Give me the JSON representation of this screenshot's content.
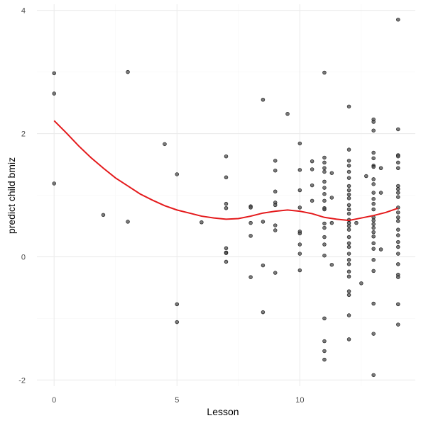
{
  "chart_data": {
    "type": "scatter",
    "title": "",
    "xlabel": "Lesson",
    "ylabel": "predict child bmiz",
    "xlim": [
      -0.7,
      14.7
    ],
    "ylim": [
      -2.1,
      4.1
    ],
    "x_ticks": [
      0,
      5,
      10
    ],
    "x_tick_labels": [
      "0",
      "5",
      "10"
    ],
    "y_ticks": [
      -2,
      0,
      2,
      4
    ],
    "y_tick_labels": [
      "-2",
      "0",
      "2",
      "4"
    ],
    "grid": true,
    "legend": "none",
    "colors": {
      "points_fill": "#4d4d4d",
      "points_stroke": "#000000",
      "smooth_line": "#e41a1c",
      "grid_major": "#ebebeb",
      "grid_minor": "#f5f5f5"
    },
    "series": [
      {
        "type": "points",
        "points": [
          [
            0,
            2.98
          ],
          [
            0,
            2.65
          ],
          [
            0,
            1.19
          ],
          [
            2,
            0.68
          ],
          [
            3,
            3.0
          ],
          [
            3,
            0.57
          ],
          [
            4.5,
            1.83
          ],
          [
            5,
            1.34
          ],
          [
            5,
            -0.77
          ],
          [
            5,
            -1.06
          ],
          [
            6,
            0.56
          ],
          [
            7,
            1.63
          ],
          [
            7,
            1.29
          ],
          [
            7,
            0.86
          ],
          [
            7,
            0.79
          ],
          [
            7,
            0.14
          ],
          [
            7,
            0.07
          ],
          [
            7,
            0.06
          ],
          [
            7,
            -0.08
          ],
          [
            8,
            0.82
          ],
          [
            8,
            0.8
          ],
          [
            8,
            0.55
          ],
          [
            8,
            0.34
          ],
          [
            8,
            -0.33
          ],
          [
            8.5,
            2.55
          ],
          [
            8.5,
            0.57
          ],
          [
            8.5,
            -0.14
          ],
          [
            8.5,
            -0.9
          ],
          [
            9,
            1.56
          ],
          [
            9,
            1.4
          ],
          [
            9,
            1.06
          ],
          [
            9,
            0.88
          ],
          [
            9,
            0.84
          ],
          [
            9,
            0.51
          ],
          [
            9,
            0.43
          ],
          [
            9,
            -0.26
          ],
          [
            9.5,
            2.32
          ],
          [
            10,
            1.84
          ],
          [
            10,
            1.41
          ],
          [
            10,
            1.08
          ],
          [
            10,
            0.8
          ],
          [
            10,
            0.41
          ],
          [
            10,
            0.38
          ],
          [
            10,
            0.2
          ],
          [
            10,
            0.05
          ],
          [
            10,
            -0.22
          ],
          [
            10.5,
            1.55
          ],
          [
            10.5,
            1.42
          ],
          [
            10.5,
            1.16
          ],
          [
            10.5,
            0.91
          ],
          [
            11,
            2.99
          ],
          [
            11,
            1.61
          ],
          [
            11,
            1.53
          ],
          [
            11,
            1.44
          ],
          [
            11,
            1.38
          ],
          [
            11,
            1.22
          ],
          [
            11,
            1.12
          ],
          [
            11,
            1.02
          ],
          [
            11,
            0.91
          ],
          [
            11,
            0.79
          ],
          [
            11,
            0.77
          ],
          [
            11,
            0.54
          ],
          [
            11,
            0.47
          ],
          [
            11,
            0.32
          ],
          [
            11,
            0.2
          ],
          [
            11,
            0.02
          ],
          [
            11,
            -1.0
          ],
          [
            11,
            -1.37
          ],
          [
            11,
            -1.53
          ],
          [
            11,
            -1.67
          ],
          [
            11.3,
            1.36
          ],
          [
            11.3,
            0.96
          ],
          [
            11.3,
            0.55
          ],
          [
            11.3,
            -0.13
          ],
          [
            12,
            2.44
          ],
          [
            12,
            1.74
          ],
          [
            12,
            1.56
          ],
          [
            12,
            1.48
          ],
          [
            12,
            1.38
          ],
          [
            12,
            1.28
          ],
          [
            12,
            1.15
          ],
          [
            12,
            1.08
          ],
          [
            12,
            1.01
          ],
          [
            12,
            0.95
          ],
          [
            12,
            0.84
          ],
          [
            12,
            0.77
          ],
          [
            12,
            0.7
          ],
          [
            12,
            0.6
          ],
          [
            12,
            0.55
          ],
          [
            12,
            0.5
          ],
          [
            12,
            0.44
          ],
          [
            12,
            0.32
          ],
          [
            12,
            0.22
          ],
          [
            12,
            0.16
          ],
          [
            12,
            0.05
          ],
          [
            12,
            -0.05
          ],
          [
            12,
            -0.12
          ],
          [
            12,
            -0.24
          ],
          [
            12,
            -0.32
          ],
          [
            12,
            -0.56
          ],
          [
            12,
            -0.62
          ],
          [
            12,
            -0.95
          ],
          [
            12,
            -1.34
          ],
          [
            12.3,
            0.55
          ],
          [
            12.5,
            -0.43
          ],
          [
            12.7,
            1.31
          ],
          [
            13,
            2.23
          ],
          [
            13,
            2.19
          ],
          [
            13,
            2.05
          ],
          [
            13,
            1.69
          ],
          [
            13,
            1.6
          ],
          [
            13,
            1.48
          ],
          [
            13,
            1.46
          ],
          [
            13,
            1.26
          ],
          [
            13,
            1.18
          ],
          [
            13,
            1.04
          ],
          [
            13,
            0.94
          ],
          [
            13,
            0.86
          ],
          [
            13,
            0.77
          ],
          [
            13,
            0.64
          ],
          [
            13,
            0.59
          ],
          [
            13,
            0.53
          ],
          [
            13,
            0.47
          ],
          [
            13,
            0.4
          ],
          [
            13,
            0.33
          ],
          [
            13,
            0.22
          ],
          [
            13,
            0.13
          ],
          [
            13,
            -0.05
          ],
          [
            13,
            -0.23
          ],
          [
            13,
            -0.76
          ],
          [
            13,
            -1.25
          ],
          [
            13,
            -1.92
          ],
          [
            13.3,
            1.44
          ],
          [
            13.3,
            1.04
          ],
          [
            13.3,
            0.12
          ],
          [
            14,
            3.85
          ],
          [
            14,
            2.07
          ],
          [
            14,
            1.65
          ],
          [
            14,
            1.63
          ],
          [
            14,
            1.53
          ],
          [
            14,
            1.44
          ],
          [
            14,
            1.15
          ],
          [
            14,
            1.1
          ],
          [
            14,
            1.04
          ],
          [
            14,
            0.97
          ],
          [
            14,
            0.8
          ],
          [
            14,
            0.72
          ],
          [
            14,
            0.64
          ],
          [
            14,
            0.58
          ],
          [
            14,
            0.44
          ],
          [
            14,
            0.35
          ],
          [
            14,
            0.24
          ],
          [
            14,
            0.16
          ],
          [
            14,
            0.05
          ],
          [
            14,
            -0.12
          ],
          [
            14,
            -0.29
          ],
          [
            14,
            -0.33
          ],
          [
            14,
            -0.77
          ],
          [
            14,
            -1.1
          ]
        ]
      },
      {
        "type": "smooth_line",
        "points": [
          [
            0,
            2.21
          ],
          [
            0.5,
            2.01
          ],
          [
            1,
            1.8
          ],
          [
            1.5,
            1.61
          ],
          [
            2,
            1.44
          ],
          [
            2.5,
            1.28
          ],
          [
            3,
            1.15
          ],
          [
            3.5,
            1.02
          ],
          [
            4,
            0.92
          ],
          [
            4.5,
            0.83
          ],
          [
            5,
            0.76
          ],
          [
            5.5,
            0.71
          ],
          [
            6,
            0.66
          ],
          [
            6.5,
            0.63
          ],
          [
            7,
            0.61
          ],
          [
            7.5,
            0.62
          ],
          [
            8,
            0.66
          ],
          [
            8.5,
            0.71
          ],
          [
            9,
            0.74
          ],
          [
            9.5,
            0.76
          ],
          [
            10,
            0.74
          ],
          [
            10.5,
            0.7
          ],
          [
            11,
            0.64
          ],
          [
            11.5,
            0.61
          ],
          [
            12,
            0.59
          ],
          [
            12.5,
            0.63
          ],
          [
            13,
            0.67
          ],
          [
            13.5,
            0.72
          ],
          [
            14,
            0.79
          ]
        ]
      }
    ]
  }
}
